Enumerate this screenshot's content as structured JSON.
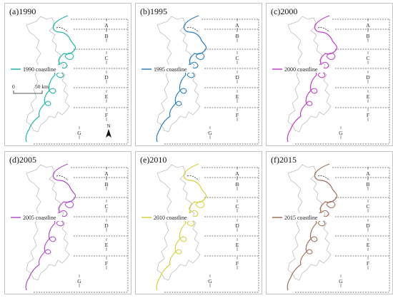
{
  "panels": [
    {
      "title": "(a)1990",
      "legend": "1990 coastline",
      "color": "#22b3a6"
    },
    {
      "title": "(b)1995",
      "legend": "1995 coastline",
      "color": "#2a7fbf"
    },
    {
      "title": "(c)2000",
      "legend": "2000 coastline",
      "color": "#c03fc8"
    },
    {
      "title": "(d)2005",
      "legend": "2005 coastline",
      "color": "#b050c8"
    },
    {
      "title": "(e)2010",
      "legend": "2010 coastline",
      "color": "#d8d040"
    },
    {
      "title": "(f)2015",
      "legend": "2015 coastline",
      "color": "#a0705a"
    }
  ],
  "segments": [
    "A",
    "B",
    "C",
    "D",
    "E",
    "F",
    "G"
  ],
  "scale_bar": {
    "zero": "0",
    "label": "50 km"
  },
  "north_label": "N"
}
